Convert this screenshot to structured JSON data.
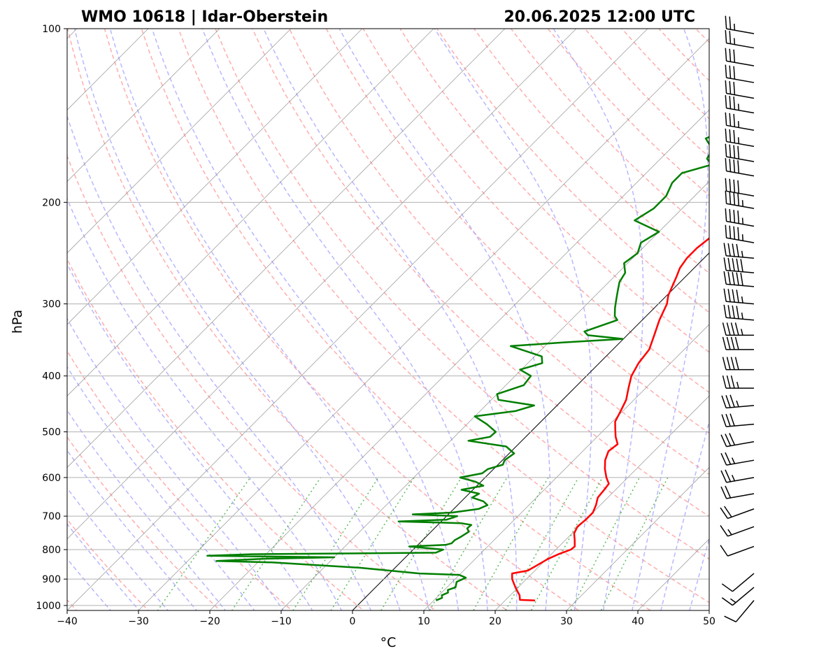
{
  "chart_data": {
    "type": "line",
    "diagram": "skew-T log-P",
    "title_left": "WMO 10618 | Idar-Oberstein",
    "title_right": "20.06.2025 12:00 UTC",
    "xlabel": "°C",
    "ylabel": "hPa",
    "xlim": [
      -40,
      50
    ],
    "ylim": [
      1020,
      100
    ],
    "y_scale": "log",
    "grid": true,
    "x_ticks": [
      -40,
      -30,
      -20,
      -10,
      0,
      10,
      20,
      30,
      40,
      50
    ],
    "x_tick_labels": [
      "−40",
      "−30",
      "−20",
      "−10",
      "0",
      "10",
      "20",
      "30",
      "40",
      "50"
    ],
    "y_ticks": [
      1000,
      900,
      800,
      700,
      600,
      500,
      400,
      300,
      200,
      100
    ],
    "y_tick_labels": [
      "1000",
      "900",
      "800",
      "700",
      "600",
      "500",
      "400",
      "300",
      "200",
      "100"
    ],
    "reference_lines": {
      "dry_adiabats_color": "#ff9999",
      "moist_adiabats_color": "#9999ff",
      "mixing_ratio_color": "#33aa33",
      "isotherms_color": "#808080",
      "zero_isotherm_color": "#000000"
    },
    "series": [
      {
        "color": "#ff0000",
        "points": [
          [
            980,
            24.2
          ],
          [
            978,
            22.0
          ],
          [
            960,
            21.3
          ],
          [
            930,
            19.6
          ],
          [
            900,
            18.0
          ],
          [
            880,
            17.2
          ],
          [
            870,
            19.0
          ],
          [
            850,
            19.6
          ],
          [
            830,
            20.2
          ],
          [
            815,
            21.0
          ],
          [
            800,
            22.1
          ],
          [
            790,
            22.2
          ],
          [
            770,
            21.3
          ],
          [
            750,
            20.3
          ],
          [
            730,
            19.8
          ],
          [
            710,
            20.0
          ],
          [
            690,
            20.0
          ],
          [
            670,
            19.4
          ],
          [
            650,
            18.6
          ],
          [
            630,
            18.4
          ],
          [
            615,
            18.2
          ],
          [
            600,
            17.0
          ],
          [
            580,
            15.6
          ],
          [
            560,
            14.4
          ],
          [
            540,
            13.6
          ],
          [
            525,
            13.9
          ],
          [
            510,
            12.6
          ],
          [
            495,
            11.5
          ],
          [
            480,
            10.4
          ],
          [
            460,
            9.7
          ],
          [
            440,
            8.9
          ],
          [
            420,
            7.6
          ],
          [
            400,
            6.3
          ],
          [
            380,
            5.5
          ],
          [
            360,
            5.1
          ],
          [
            340,
            3.8
          ],
          [
            320,
            2.4
          ],
          [
            300,
            1.2
          ],
          [
            290,
            0.2
          ],
          [
            270,
            -1.2
          ],
          [
            260,
            -2.0
          ],
          [
            250,
            -2.4
          ],
          [
            240,
            -2.4
          ],
          [
            230,
            -2.0
          ],
          [
            220,
            -2.4
          ],
          [
            205,
            -0.6
          ],
          [
            200,
            0.1
          ],
          [
            190,
            1.7
          ],
          [
            180,
            3.4
          ],
          [
            175,
            3.6
          ],
          [
            170,
            4.1
          ],
          [
            165,
            4.6
          ],
          [
            160,
            6.3
          ],
          [
            150,
            8.1
          ],
          [
            140,
            8.8
          ],
          [
            130,
            11.6
          ],
          [
            125,
            13.0
          ],
          [
            120,
            14.4
          ],
          [
            115,
            15.0
          ],
          [
            110,
            17.4
          ],
          [
            105,
            19.0
          ],
          [
            100,
            21.4
          ]
        ]
      },
      {
        "color": "#007f00",
        "points": [
          [
            980,
            10.3
          ],
          [
            970,
            10.8
          ],
          [
            960,
            10.4
          ],
          [
            950,
            10.9
          ],
          [
            940,
            10.5
          ],
          [
            930,
            11.2
          ],
          [
            910,
            10.6
          ],
          [
            895,
            11.3
          ],
          [
            885,
            10.0
          ],
          [
            880,
            4.2
          ],
          [
            860,
            -5.0
          ],
          [
            842,
            -18.0
          ],
          [
            837,
            -26.0
          ],
          [
            830,
            -20.0
          ],
          [
            825,
            -10.0
          ],
          [
            820,
            -28.0
          ],
          [
            815,
            -22.0
          ],
          [
            810,
            3.6
          ],
          [
            800,
            4.2
          ],
          [
            790,
            -1.0
          ],
          [
            785,
            3.9
          ],
          [
            780,
            4.5
          ],
          [
            770,
            4.5
          ],
          [
            760,
            4.9
          ],
          [
            745,
            5.3
          ],
          [
            735,
            4.6
          ],
          [
            725,
            4.7
          ],
          [
            720,
            3.0
          ],
          [
            715,
            -6.0
          ],
          [
            710,
            0.5
          ],
          [
            700,
            1.5
          ],
          [
            695,
            -5.0
          ],
          [
            690,
            0.3
          ],
          [
            680,
            3.5
          ],
          [
            670,
            4.2
          ],
          [
            660,
            3.1
          ],
          [
            650,
            1.0
          ],
          [
            640,
            1.4
          ],
          [
            630,
            -1.6
          ],
          [
            620,
            0.9
          ],
          [
            610,
            -0.8
          ],
          [
            600,
            -3.5
          ],
          [
            590,
            -1.0
          ],
          [
            580,
            -0.8
          ],
          [
            570,
            0.7
          ],
          [
            560,
            0.3
          ],
          [
            545,
            0.7
          ],
          [
            530,
            -1.4
          ],
          [
            518,
            -7.5
          ],
          [
            510,
            -5.0
          ],
          [
            500,
            -4.9
          ],
          [
            485,
            -7.2
          ],
          [
            470,
            -10.0
          ],
          [
            460,
            -5.0
          ],
          [
            450,
            -3.2
          ],
          [
            440,
            -9.0
          ],
          [
            430,
            -10.0
          ],
          [
            415,
            -7.5
          ],
          [
            400,
            -7.8
          ],
          [
            390,
            -10.2
          ],
          [
            380,
            -8.0
          ],
          [
            370,
            -9.0
          ],
          [
            355,
            -14.8
          ],
          [
            350,
            -8.0
          ],
          [
            345,
            -0.1
          ],
          [
            340,
            -5.5
          ],
          [
            335,
            -6.5
          ],
          [
            320,
            -3.5
          ],
          [
            315,
            -4.4
          ],
          [
            305,
            -5.5
          ],
          [
            295,
            -6.5
          ],
          [
            285,
            -7.5
          ],
          [
            275,
            -8.5
          ],
          [
            265,
            -9.0
          ],
          [
            255,
            -10.5
          ],
          [
            245,
            -10.0
          ],
          [
            235,
            -11.0
          ],
          [
            225,
            -10.0
          ],
          [
            215,
            -15.0
          ],
          [
            205,
            -14.0
          ],
          [
            195,
            -14.0
          ],
          [
            185,
            -15.0
          ],
          [
            178,
            -15.0
          ],
          [
            172,
            -12.0
          ],
          [
            168,
            -13.5
          ],
          [
            162,
            -14.0
          ],
          [
            155,
            -16.5
          ],
          [
            150,
            -15.0
          ],
          [
            145,
            -13.0
          ],
          [
            140,
            -13.8
          ],
          [
            130,
            -14.5
          ],
          [
            125,
            -13.0
          ],
          [
            120,
            -12.8
          ],
          [
            115,
            -11.0
          ],
          [
            110,
            -9.5
          ],
          [
            105,
            -8.0
          ],
          [
            100,
            -6.2
          ]
        ]
      }
    ],
    "wind_barbs": {
      "color": "#000000",
      "levels_hPa": [
        980,
        930,
        880,
        790,
        730,
        680,
        640,
        600,
        560,
        520,
        485,
        450,
        420,
        390,
        360,
        340,
        320,
        300,
        280,
        265,
        250,
        235,
        220,
        205,
        195,
        180,
        170,
        160,
        150,
        140,
        132,
        124,
        116,
        108,
        102
      ],
      "direction_deg": [
        220,
        230,
        230,
        250,
        250,
        250,
        260,
        260,
        260,
        260,
        265,
        265,
        270,
        270,
        270,
        270,
        275,
        275,
        275,
        275,
        275,
        280,
        280,
        280,
        280,
        280,
        280,
        280,
        280,
        280,
        280,
        280,
        280,
        280,
        280
      ],
      "speed_kt": [
        10,
        15,
        10,
        10,
        15,
        20,
        20,
        25,
        25,
        30,
        30,
        35,
        35,
        40,
        40,
        45,
        45,
        45,
        50,
        50,
        45,
        45,
        45,
        45,
        40,
        40,
        40,
        35,
        35,
        35,
        30,
        30,
        30,
        25,
        25
      ]
    }
  }
}
